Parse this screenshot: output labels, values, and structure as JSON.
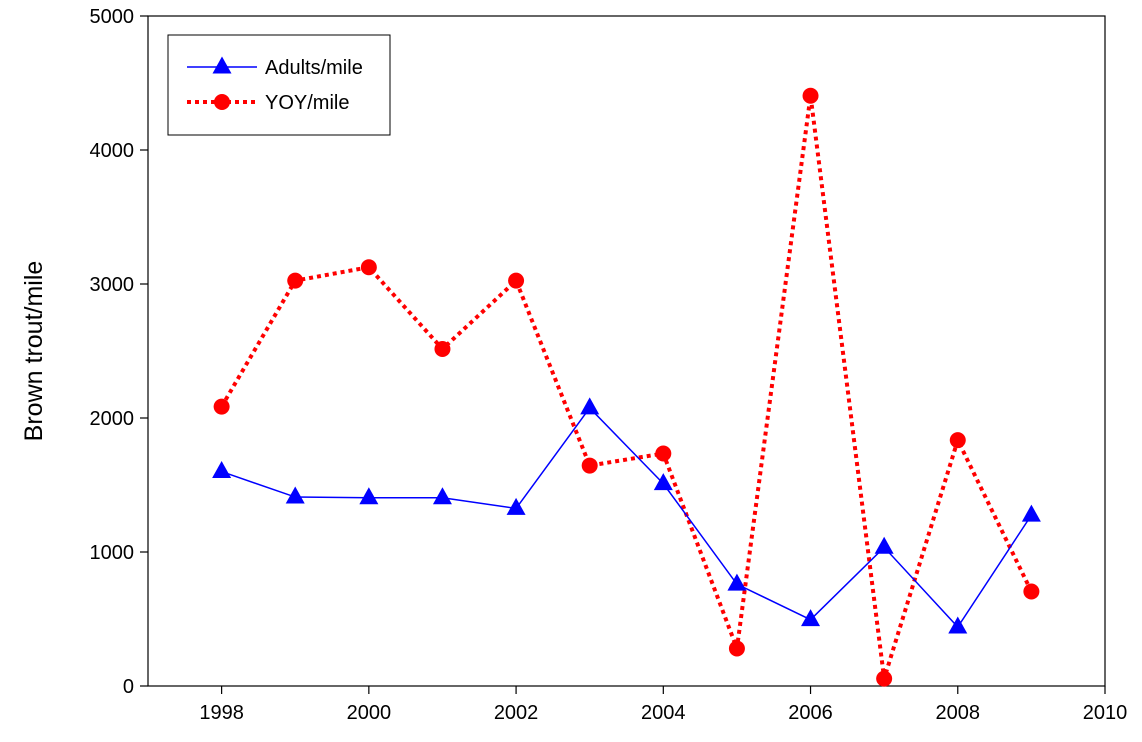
{
  "chart_data": {
    "type": "line",
    "title": "",
    "xlabel": "",
    "ylabel": "Brown trout/mile",
    "xlim": [
      1997,
      2010
    ],
    "ylim": [
      0,
      5000
    ],
    "xticks": [
      1998,
      2000,
      2002,
      2004,
      2006,
      2008,
      2010
    ],
    "yticks": [
      0,
      1000,
      2000,
      3000,
      4000,
      5000
    ],
    "grid": false,
    "legend_position": "top-left",
    "x": [
      1998,
      1999,
      2000,
      2001,
      2002,
      2003,
      2004,
      2005,
      2006,
      2007,
      2008,
      2009
    ],
    "series": [
      {
        "name": "Adults/mile",
        "color": "#0000ff",
        "marker": "triangle",
        "line_style": "solid",
        "values": [
          1600,
          1410,
          1405,
          1405,
          1325,
          2075,
          1510,
          760,
          495,
          1035,
          440,
          1275
        ]
      },
      {
        "name": "YOY/mile",
        "color": "#ff0000",
        "marker": "circle",
        "line_style": "dotted",
        "values": [
          2085,
          3025,
          3125,
          2515,
          3025,
          1645,
          1735,
          280,
          4405,
          55,
          1835,
          705
        ]
      }
    ]
  }
}
